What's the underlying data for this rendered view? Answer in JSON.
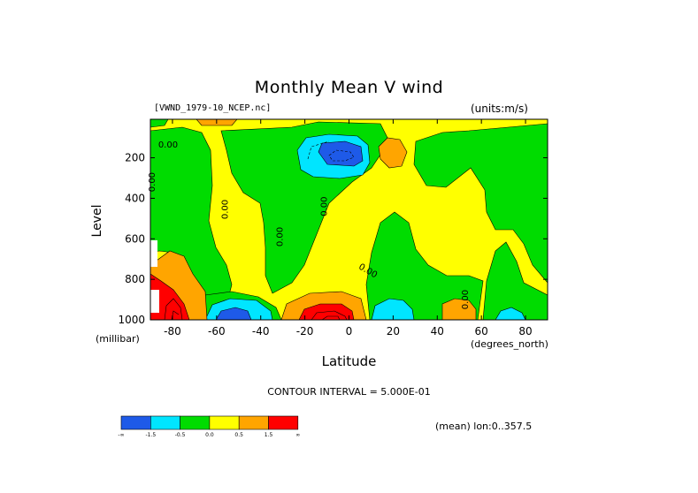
{
  "title": "Monthly Mean V wind",
  "dataset_label": "[VWND_1979-10_NCEP.nc]",
  "units_label": "(units:m/s)",
  "footer": {
    "contour_interval": "CONTOUR INTERVAL = 5.000E-01",
    "mean_note": "(mean) lon:0..357.5"
  },
  "chart_data": {
    "type": "heatmap",
    "title": "Monthly Mean V wind",
    "xlabel": "Latitude",
    "x_unit": "(degrees_north)",
    "ylabel": "Level",
    "y_unit": "(millibar)",
    "xlim": [
      -90,
      90
    ],
    "ylim": [
      1000,
      10
    ],
    "y_inverted": true,
    "x_ticks": [
      -80,
      -60,
      -40,
      -20,
      0,
      20,
      40,
      60,
      80
    ],
    "x_tick_labels": [
      "-80",
      "-60",
      "-40",
      "-20",
      "0",
      "20",
      "40",
      "60",
      "80"
    ],
    "y_ticks": [
      200,
      400,
      600,
      800,
      1000
    ],
    "y_tick_labels": [
      "200",
      "400",
      "600",
      "800",
      "1000"
    ],
    "contour_labels": [
      "0.00",
      "0.00",
      "0.00",
      "0.00",
      "0.00",
      "0.00",
      "0.00"
    ],
    "colorbar": {
      "colors": [
        "#1e5ae8",
        "#00e5ff",
        "#00dc00",
        "#ffff00",
        "#ffa500",
        "#ff0000"
      ],
      "tick_labels": [
        "-∞",
        "-1.5",
        "-0.5",
        "0.0",
        "0.5",
        "1.5",
        "∞"
      ]
    },
    "regions": [
      {
        "level": "negative_strong",
        "color": "#1e5ae8",
        "lat": [
          -15,
          5
        ],
        "pressure": [
          140,
          230
        ]
      },
      {
        "level": "negative_medium",
        "color": "#00e5ff",
        "lat": [
          -20,
          10
        ],
        "pressure": [
          110,
          260
        ]
      },
      {
        "level": "negative_medium",
        "color": "#00e5ff",
        "lat": [
          -65,
          -45
        ],
        "pressure": [
          870,
          1000
        ]
      },
      {
        "level": "negative_strong",
        "color": "#1e5ae8",
        "lat": [
          -60,
          -48
        ],
        "pressure": [
          940,
          1000
        ]
      },
      {
        "level": "negative_medium",
        "color": "#00e5ff",
        "lat": [
          10,
          25
        ],
        "pressure": [
          910,
          1000
        ]
      },
      {
        "level": "positive_medium",
        "color": "#ffa500",
        "lat": [
          -25,
          5
        ],
        "pressure": [
          860,
          1000
        ]
      },
      {
        "level": "positive_strong",
        "color": "#ff0000",
        "lat": [
          -20,
          3
        ],
        "pressure": [
          940,
          1000
        ]
      },
      {
        "level": "positive_medium",
        "color": "#ffa500",
        "lat": [
          -90,
          -72
        ],
        "pressure": [
          680,
          1000
        ]
      },
      {
        "level": "positive_strong",
        "color": "#ff0000",
        "lat": [
          -90,
          -75
        ],
        "pressure": [
          800,
          1000
        ]
      },
      {
        "level": "positive_medium",
        "color": "#ffa500",
        "lat": [
          15,
          26
        ],
        "pressure": [
          110,
          230
        ]
      },
      {
        "level": "positive_medium",
        "color": "#ffa500",
        "lat": [
          47,
          62
        ],
        "pressure": [
          880,
          1000
        ]
      }
    ]
  }
}
